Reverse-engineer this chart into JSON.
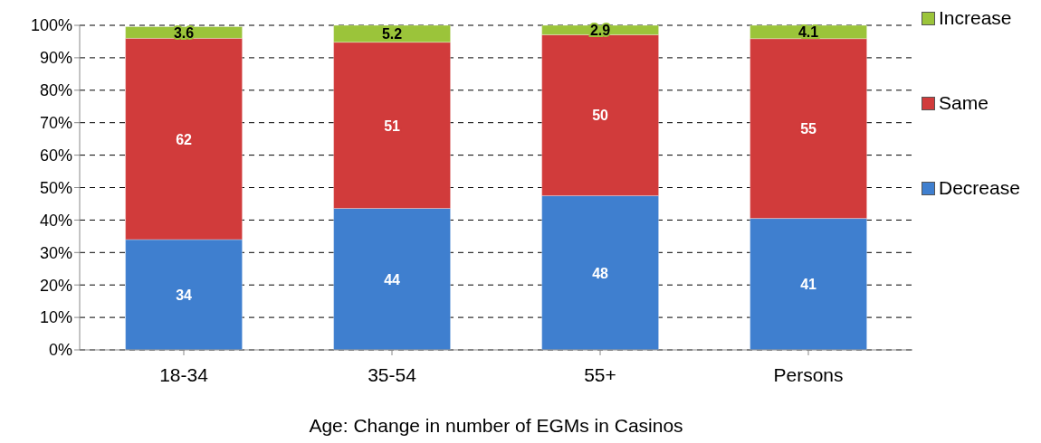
{
  "chart_data": {
    "type": "bar",
    "stacked": true,
    "xlabel": "Age: Change in number of EGMs in Casinos",
    "categories": [
      "18-34",
      "35-54",
      "55+",
      "Persons"
    ],
    "series": [
      {
        "name": "Decrease",
        "color": "#3f7fcf",
        "values": [
          34,
          43.6,
          47.5,
          40.5
        ],
        "value_labels": [
          "34",
          "44",
          "48",
          "41"
        ]
      },
      {
        "name": "Same",
        "color": "#d13b3b",
        "values": [
          62,
          51.2,
          49.6,
          55.4
        ],
        "value_labels": [
          "62",
          "51",
          "50",
          "55"
        ]
      },
      {
        "name": "Increase",
        "color": "#9bc43a",
        "values": [
          3.6,
          5.2,
          2.9,
          4.1
        ],
        "value_labels": [
          "3.6",
          "5.2",
          "2.9",
          "4.1"
        ]
      }
    ],
    "ylim": [
      0,
      100
    ],
    "yticks": [
      {
        "value": 0,
        "label": "0%"
      },
      {
        "value": 10,
        "label": "10%"
      },
      {
        "value": 20,
        "label": "20%"
      },
      {
        "value": 30,
        "label": "30%"
      },
      {
        "value": 40,
        "label": "40%"
      },
      {
        "value": 50,
        "label": "50%"
      },
      {
        "value": 60,
        "label": "60%"
      },
      {
        "value": 70,
        "label": "70%"
      },
      {
        "value": 80,
        "label": "80%"
      },
      {
        "value": 90,
        "label": "90%"
      },
      {
        "value": 100,
        "label": "100%"
      }
    ],
    "grid": "y",
    "legend": "right"
  }
}
